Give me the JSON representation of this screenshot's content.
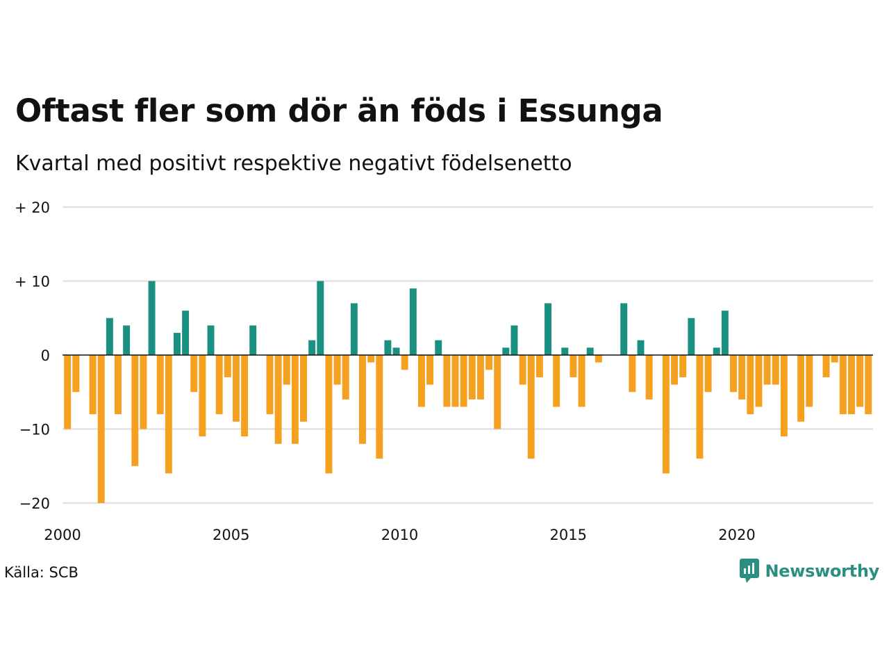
{
  "header": {
    "title": "Oftast fler som dör än föds i Essunga",
    "subtitle": "Kvartal med positivt respektive negativt födelsenetto"
  },
  "footer": {
    "source": "Källa: SCB",
    "brand": "Newsworthy",
    "brand_icon": "newsworthy-logo-icon",
    "brand_color": "#2a8f80"
  },
  "colors": {
    "positive": "#1a9080",
    "negative": "#f5a01e",
    "grid": "#e2e2e2",
    "zero_line": "#111111"
  },
  "chart_data": {
    "type": "bar",
    "title": "Oftast fler som dör än föds i Essunga",
    "subtitle": "Kvartal med positivt respektive negativt födelsenetto",
    "x_start": 2000,
    "periods_per_year": 4,
    "xlim": [
      2000,
      2024
    ],
    "ylim": [
      -20,
      20
    ],
    "y_ticks": [
      20,
      10,
      0,
      -10,
      -20
    ],
    "y_tick_labels": [
      "+ 20",
      "+ 10",
      "0",
      "−10",
      "−20"
    ],
    "x_ticks": [
      2000,
      2005,
      2010,
      2015,
      2020
    ],
    "x_tick_labels": [
      "2000",
      "2005",
      "2010",
      "2015",
      "2020"
    ],
    "grid": true,
    "values": [
      -10,
      -5,
      0,
      -8,
      -20,
      5,
      -8,
      4,
      -15,
      -10,
      10,
      -8,
      -16,
      3,
      6,
      -5,
      -11,
      4,
      -8,
      -3,
      -9,
      -11,
      4,
      0,
      -8,
      -12,
      -4,
      -12,
      -9,
      2,
      10,
      -16,
      -4,
      -6,
      7,
      -12,
      -1,
      -14,
      2,
      1,
      -2,
      9,
      -7,
      -4,
      2,
      -7,
      -7,
      -7,
      -6,
      -6,
      -2,
      -10,
      1,
      4,
      -4,
      -14,
      -3,
      7,
      -7,
      1,
      -3,
      -7,
      1,
      -1,
      0,
      0,
      7,
      -5,
      2,
      -6,
      0,
      -16,
      -4,
      -3,
      5,
      -14,
      -5,
      1,
      6,
      -5,
      -6,
      -8,
      -7,
      -4,
      -4,
      -11,
      0,
      -9,
      -7,
      0,
      -3,
      -1,
      -8,
      -8,
      -7,
      -8
    ]
  }
}
